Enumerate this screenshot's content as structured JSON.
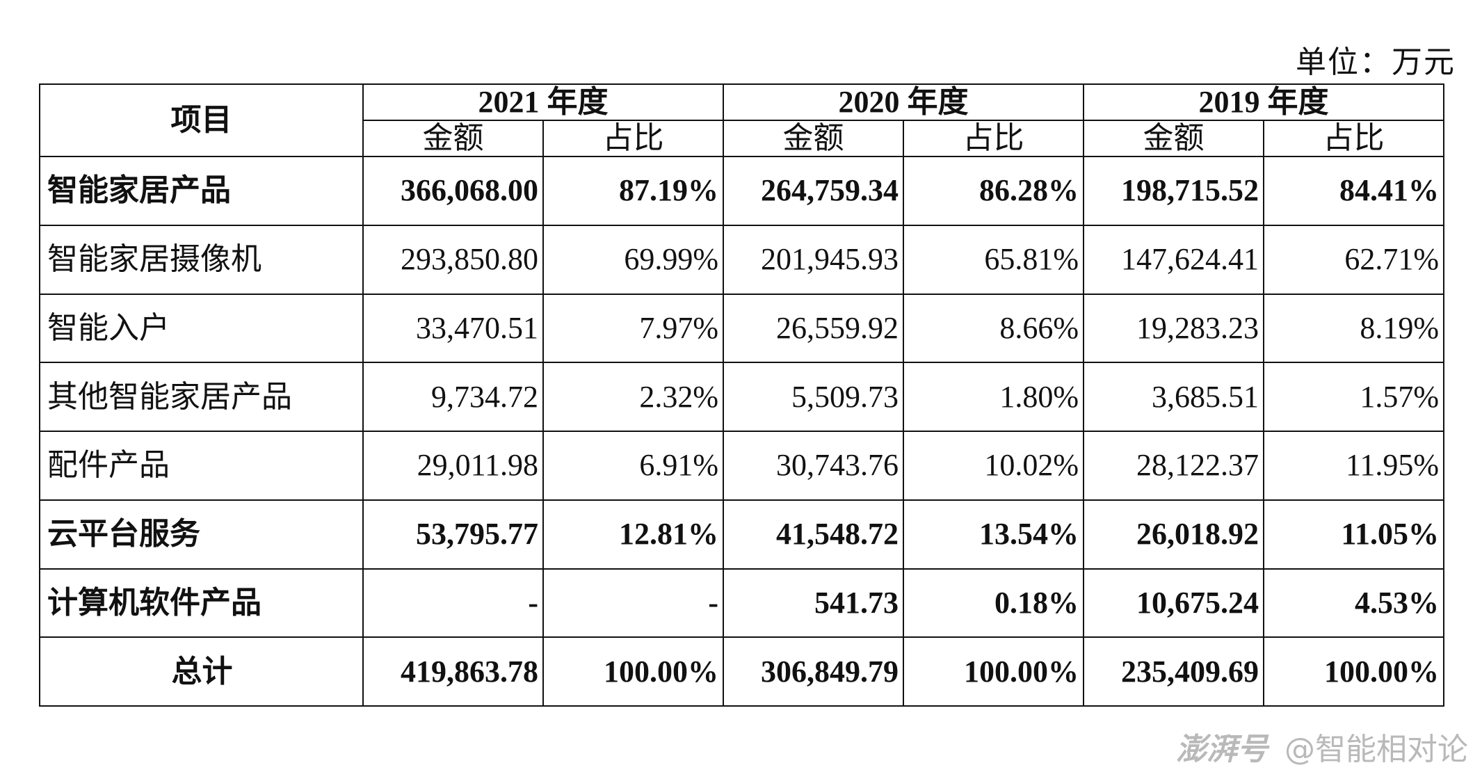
{
  "unit_label": "单位：万元",
  "header": {
    "item": "项目",
    "years": [
      "2021 年度",
      "2020 年度",
      "2019 年度"
    ],
    "amount": "金额",
    "ratio": "占比"
  },
  "rows": [
    {
      "label": "智能家居产品",
      "bold": true,
      "cells": [
        "366,068.00",
        "87.19%",
        "264,759.34",
        "86.28%",
        "198,715.52",
        "84.41%"
      ]
    },
    {
      "label": "智能家居摄像机",
      "bold": false,
      "cells": [
        "293,850.80",
        "69.99%",
        "201,945.93",
        "65.81%",
        "147,624.41",
        "62.71%"
      ]
    },
    {
      "label": "智能入户",
      "bold": false,
      "cells": [
        "33,470.51",
        "7.97%",
        "26,559.92",
        "8.66%",
        "19,283.23",
        "8.19%"
      ]
    },
    {
      "label": "其他智能家居产品",
      "bold": false,
      "cells": [
        "9,734.72",
        "2.32%",
        "5,509.73",
        "1.80%",
        "3,685.51",
        "1.57%"
      ]
    },
    {
      "label": "配件产品",
      "bold": false,
      "cells": [
        "29,011.98",
        "6.91%",
        "30,743.76",
        "10.02%",
        "28,122.37",
        "11.95%"
      ]
    },
    {
      "label": "云平台服务",
      "bold": true,
      "cells": [
        "53,795.77",
        "12.81%",
        "41,548.72",
        "13.54%",
        "26,018.92",
        "11.05%"
      ]
    },
    {
      "label": "计算机软件产品",
      "bold": true,
      "cells": [
        "-",
        "-",
        "541.73",
        "0.18%",
        "10,675.24",
        "4.53%"
      ]
    },
    {
      "label": "总计",
      "bold": true,
      "total": true,
      "cells": [
        "419,863.78",
        "100.00%",
        "306,849.79",
        "100.00%",
        "235,409.69",
        "100.00%"
      ]
    }
  ],
  "watermark": {
    "brand": "澎湃号",
    "account": "@智能相对论"
  }
}
